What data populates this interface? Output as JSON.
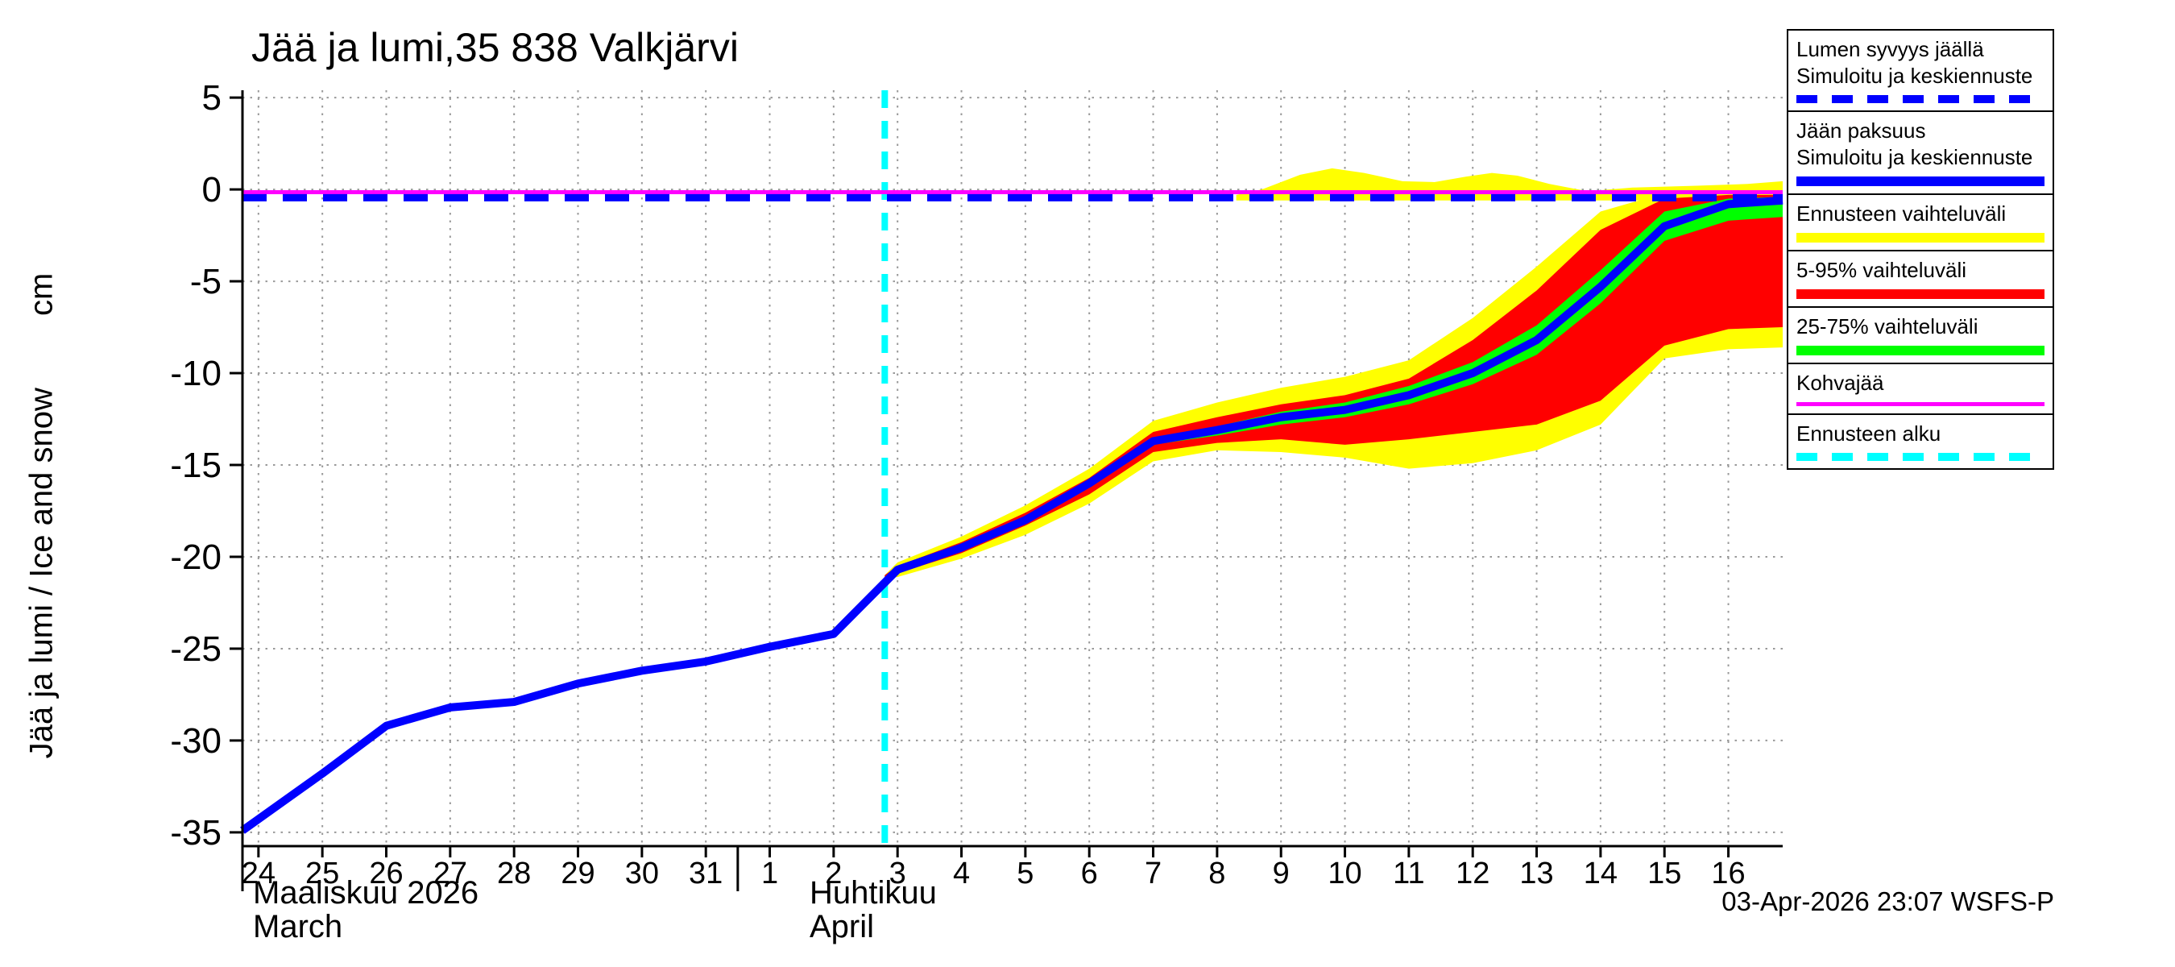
{
  "title": "Jää ja lumi,35 838 Valkjärvi",
  "timestamp": "03-Apr-2026 23:07 WSFS-P",
  "y_axis": {
    "label": "Jää ja lumi / Ice and snow",
    "unit": "cm"
  },
  "x_axis": {
    "month1": {
      "fi": "Maaliskuu 2026",
      "en": "March"
    },
    "month2": {
      "fi": "Huhtikuu",
      "en": "April"
    }
  },
  "legend": {
    "items": [
      {
        "lines": [
          "Lumen syvyys jäällä",
          "Simuloitu ja keskiennuste"
        ],
        "color": "#0000ff",
        "style": "dashed",
        "thickness": 10
      },
      {
        "lines": [
          "Jään paksuus",
          "Simuloitu ja keskiennuste"
        ],
        "color": "#0000ff",
        "style": "solid",
        "thickness": 12
      },
      {
        "lines": [
          "Ennusteen vaihteluväli"
        ],
        "color": "#ffff00",
        "style": "solid",
        "thickness": 12
      },
      {
        "lines": [
          "5-95% vaihteluväli"
        ],
        "color": "#ff0000",
        "style": "solid",
        "thickness": 12
      },
      {
        "lines": [
          "25-75% vaihteluväli"
        ],
        "color": "#00ff00",
        "style": "solid",
        "thickness": 12
      },
      {
        "lines": [
          "Kohvajää"
        ],
        "color": "#ff00ff",
        "style": "solid",
        "thickness": 5
      },
      {
        "lines": [
          "Ennusteen alku"
        ],
        "color": "#00ffff",
        "style": "dashed",
        "thickness": 10
      }
    ]
  },
  "chart_data": {
    "type": "line",
    "title": "Jää ja lumi,35 838 Valkjärvi",
    "ylabel": "Jää ja lumi / Ice and snow (cm)",
    "xlabel": "Maaliskuu 2026 / March — Huhtikuu / April",
    "xlim": [
      -0.25,
      23.85
    ],
    "ylim": [
      -35.75,
      5.4
    ],
    "grid": true,
    "legend_position": "right",
    "y_ticks": [
      5,
      0,
      -5,
      -10,
      -15,
      -20,
      -25,
      -30,
      -35
    ],
    "x_tick_labels": [
      "24",
      "25",
      "26",
      "27",
      "28",
      "29",
      "30",
      "31",
      "1",
      "2",
      "3",
      "4",
      "5",
      "6",
      "7",
      "8",
      "9",
      "10",
      "11",
      "12",
      "13",
      "14",
      "15",
      "16"
    ],
    "month_boundary_index": 7.5,
    "forecast_start": {
      "x": 9.8,
      "color": "#00ffff",
      "label": "Ennusteen alku"
    },
    "bands": [
      {
        "name": "snow-forecast-range",
        "legend": "Ennusteen vaihteluväli (lumi)",
        "color": "#ffff00",
        "x": [
          15.3,
          15.7,
          16.3,
          16.8,
          17.3,
          17.9,
          18.4,
          18.9,
          19.3,
          19.7,
          20.2,
          20.8,
          21.5,
          22.5,
          23.3,
          23.85
        ],
        "upper": [
          -0.3,
          0.0,
          0.8,
          1.15,
          0.9,
          0.45,
          0.4,
          0.7,
          0.9,
          0.75,
          0.3,
          -0.1,
          0.1,
          0.2,
          0.3,
          0.45
        ],
        "lower": [
          -0.6,
          -0.6,
          -0.6,
          -0.6,
          -0.6,
          -0.6,
          -0.6,
          -0.6,
          -0.6,
          -0.6,
          -0.6,
          -0.6,
          -0.6,
          -0.6,
          -0.6,
          -0.6
        ]
      },
      {
        "name": "ice-forecast-range",
        "legend": "Ennusteen vaihteluväli",
        "color": "#ffff00",
        "x": [
          9.8,
          10,
          11,
          12,
          13,
          14,
          15,
          16,
          17,
          18,
          19,
          20,
          21,
          22,
          23,
          23.85
        ],
        "upper": [
          -21.0,
          -20.3,
          -18.9,
          -17.2,
          -15.2,
          -12.6,
          -11.6,
          -10.8,
          -10.2,
          -9.3,
          -7.0,
          -4.2,
          -1.2,
          -0.2,
          -0.1,
          -0.1
        ],
        "lower": [
          -21.2,
          -21.1,
          -20.1,
          -18.8,
          -17.1,
          -14.8,
          -14.2,
          -14.3,
          -14.6,
          -15.2,
          -14.9,
          -14.2,
          -12.8,
          -9.2,
          -8.7,
          -8.6
        ]
      },
      {
        "name": "ice-5-95-range",
        "legend": "5-95% vaihteluväli",
        "color": "#ff0000",
        "x": [
          9.8,
          10,
          11,
          12,
          13,
          14,
          15,
          16,
          17,
          18,
          19,
          20,
          21,
          22,
          23,
          23.85
        ],
        "upper": [
          -21.0,
          -20.5,
          -19.2,
          -17.6,
          -15.7,
          -13.2,
          -12.4,
          -11.7,
          -11.2,
          -10.3,
          -8.2,
          -5.5,
          -2.2,
          -0.5,
          -0.3,
          -0.3
        ],
        "lower": [
          -21.1,
          -20.9,
          -19.8,
          -18.3,
          -16.6,
          -14.3,
          -13.8,
          -13.6,
          -13.9,
          -13.6,
          -13.2,
          -12.8,
          -11.5,
          -8.5,
          -7.6,
          -7.5
        ]
      },
      {
        "name": "ice-25-75-range",
        "legend": "25-75% vaihteluväli",
        "color": "#00ff00",
        "x": [
          13,
          14,
          15,
          16,
          17,
          18,
          19,
          20,
          21,
          22,
          23,
          23.85
        ],
        "upper": [
          -15.9,
          -13.5,
          -12.9,
          -12.1,
          -11.6,
          -10.7,
          -9.4,
          -7.4,
          -4.4,
          -1.2,
          -0.5,
          -0.4
        ],
        "lower": [
          -16.1,
          -13.9,
          -13.4,
          -12.8,
          -12.4,
          -11.7,
          -10.6,
          -9.0,
          -6.2,
          -2.8,
          -1.7,
          -1.5
        ]
      }
    ],
    "series": [
      {
        "name": "ice-thickness",
        "legend": "Jään paksuus — Simuloitu ja keskiennuste",
        "color": "#0000ff",
        "width": 10,
        "dash": "",
        "x": [
          -0.25,
          1,
          2,
          3,
          4,
          5,
          6,
          7,
          8,
          9,
          10,
          11,
          12,
          13,
          14,
          15,
          16,
          17,
          18,
          19,
          20,
          21,
          22,
          23,
          23.85
        ],
        "y": [
          -34.9,
          -31.8,
          -29.2,
          -28.2,
          -27.9,
          -26.9,
          -26.2,
          -25.7,
          -24.9,
          -24.2,
          -20.7,
          -19.5,
          -18.0,
          -16.0,
          -13.7,
          -13.1,
          -12.4,
          -12.0,
          -11.2,
          -10.0,
          -8.2,
          -5.3,
          -2.0,
          -0.8,
          -0.6
        ]
      },
      {
        "name": "kohvajaa",
        "legend": "Kohvajää",
        "color": "#ff00ff",
        "width": 5,
        "dash": "",
        "x": [
          -0.25,
          23.85
        ],
        "y": [
          -0.15,
          -0.15
        ]
      },
      {
        "name": "snow-depth",
        "legend": "Lumen syvyys jäällä — Simuloitu ja keskiennuste",
        "color": "#0000ff",
        "width": 9,
        "dash": "30 20",
        "x": [
          -0.25,
          23.85
        ],
        "y": [
          -0.45,
          -0.45
        ]
      }
    ]
  }
}
